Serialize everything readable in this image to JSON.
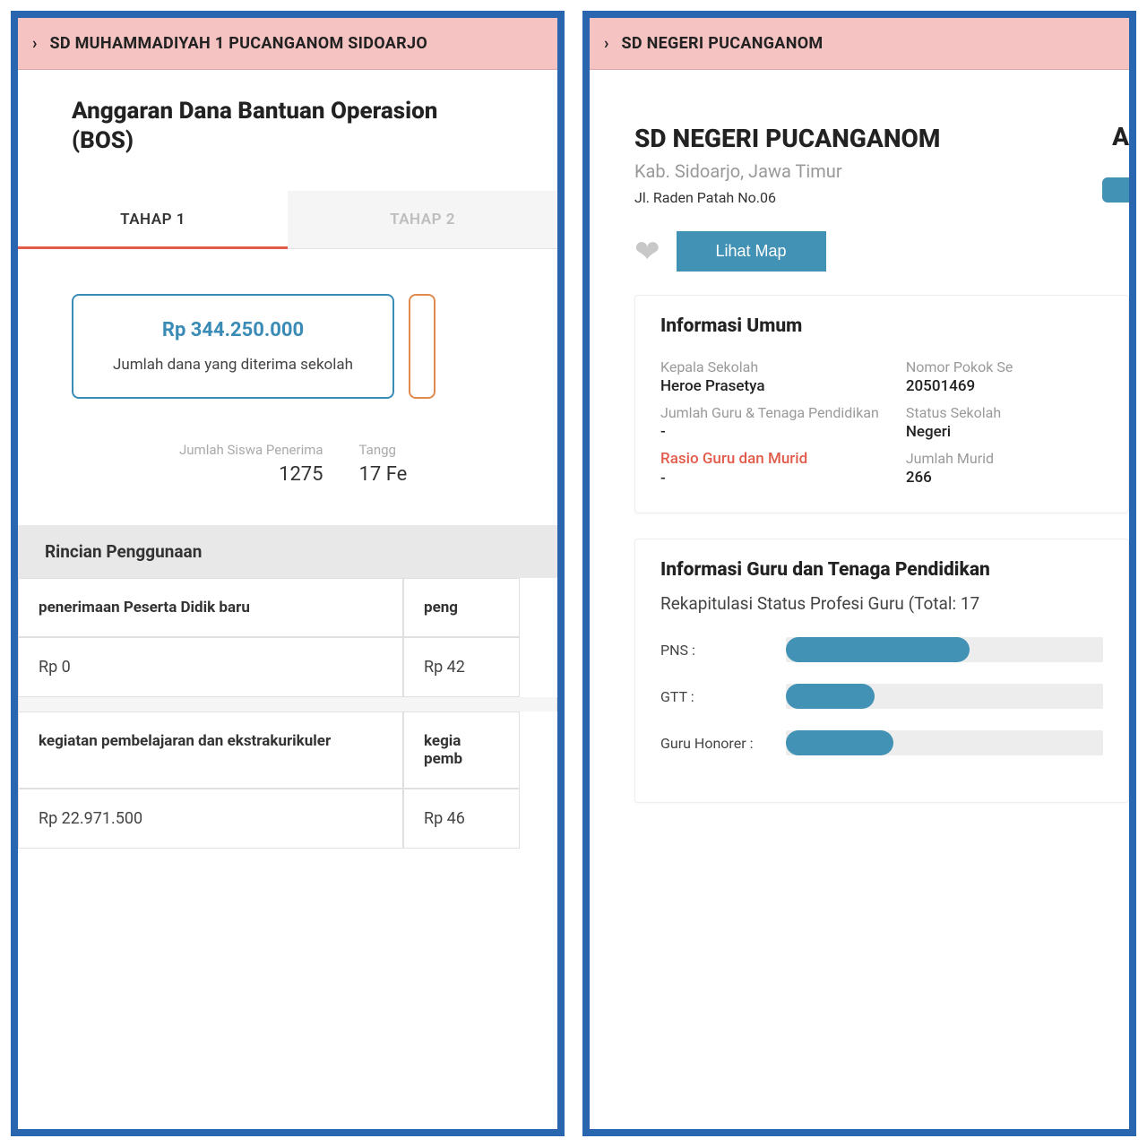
{
  "colors": {
    "frame_border": "#2a65b0",
    "header_bg": "#f6c3c3",
    "accent_red": "#e25b4a",
    "accent_blue": "#4292b5",
    "accent_teal": "#3a8bb5",
    "accent_orange": "#e08a4e",
    "text_muted": "#9a9a9a",
    "bar_track": "#ededed"
  },
  "left": {
    "header": "SD MUHAMMADIYAH 1 PUCANGANOM SIDOARJO",
    "title_line": "Anggaran Dana Bantuan Operasion",
    "title_abbrev": "(BOS)",
    "tabs": {
      "tab1": "TAHAP 1",
      "tab2": "TAHAP 2",
      "active_index": 0
    },
    "amount": {
      "value": "Rp 344.250.000",
      "label": "Jumlah dana yang diterima sekolah"
    },
    "stats": {
      "recipients_label": "Jumlah Siswa Penerima",
      "recipients_value": "1275",
      "date_label": "Tangg",
      "date_value": "17 Fe"
    },
    "section_title": "Rincian Penggunaan",
    "usage": [
      {
        "name": "penerimaan Peserta Didik baru",
        "value": "Rp 0",
        "name2": "peng",
        "value2": "Rp 42"
      },
      {
        "name": "kegiatan pembelajaran dan ekstrakurikuler",
        "value": "Rp 22.971.500",
        "name2": "kegia\npemb",
        "value2": "Rp 46"
      }
    ]
  },
  "right": {
    "header": "SD NEGERI PUCANGANOM",
    "school_name": "SD NEGERI PUCANGANOM",
    "top_right_letter": "A",
    "location": "Kab. Sidoarjo, Jawa Timur",
    "address": "Jl. Raden Patah No.06",
    "map_button": "Lihat Map",
    "info_title": "Informasi Umum",
    "info": {
      "head_label": "Kepala Sekolah",
      "head_value": "Heroe Prasetya",
      "npsn_label": "Nomor Pokok Se",
      "npsn_value": "20501469",
      "staff_label": "Jumlah Guru & Tenaga Pendidikan",
      "staff_value": "-",
      "status_label": "Status Sekolah",
      "status_value": "Negeri",
      "ratio_label": "Rasio Guru dan Murid",
      "ratio_value": "-",
      "students_label": "Jumlah Murid",
      "students_value": "266"
    },
    "teachers_title": "Informasi Guru dan Tenaga Pendidikan",
    "teachers_subtitle": "Rekapitulasi Status Profesi Guru (Total: 17",
    "bars": [
      {
        "label": "PNS :",
        "pct": 58
      },
      {
        "label": "GTT :",
        "pct": 28
      },
      {
        "label": "Guru Honorer :",
        "pct": 34
      }
    ]
  }
}
